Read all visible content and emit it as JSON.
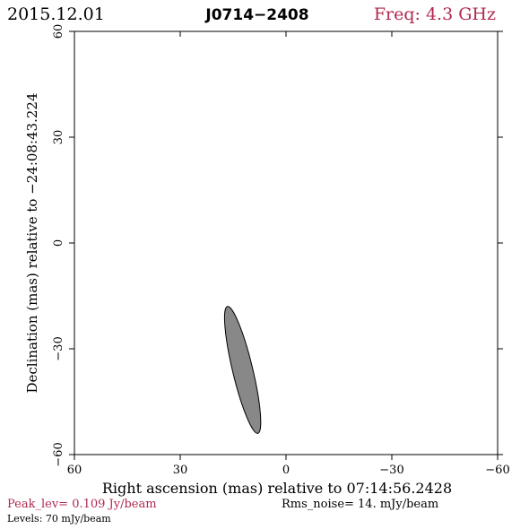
{
  "header": {
    "date": "2015.12.01",
    "source": "J0714−2408",
    "freq": "Freq: 4.3 GHz"
  },
  "footer": {
    "peak": "Peak_lev=  0.109 Jy/beam",
    "rms": "Rms_noise=  14. mJy/beam",
    "levels": "Levels:  70 mJy/beam"
  },
  "colors": {
    "freq": "#b0294f",
    "peak": "#b0294f",
    "ellipse_fill": "#888888",
    "axis": "#000000"
  },
  "chart_data": {
    "type": "scatter",
    "xlabel": "Right ascension (mas) relative to 07:14:56.2428",
    "ylabel": "Declination (mas) relative to −24:08:43.224",
    "xlim": [
      60,
      -60
    ],
    "ylim": [
      -60,
      60
    ],
    "xticks": [
      60,
      30,
      0,
      -30,
      -60
    ],
    "yticks": [
      60,
      30,
      0,
      -30,
      -60
    ],
    "xtick_labels": [
      "60",
      "30",
      "0",
      "−30",
      "−60"
    ],
    "ytick_labels": [
      "60",
      "30",
      "0",
      "−30",
      "−60"
    ],
    "grid": false,
    "beam": {
      "center_ra": 12.3,
      "center_dec": -36.0,
      "major_mas": 37.0,
      "minor_mas": 5.7,
      "pa_deg": -13.5
    }
  }
}
